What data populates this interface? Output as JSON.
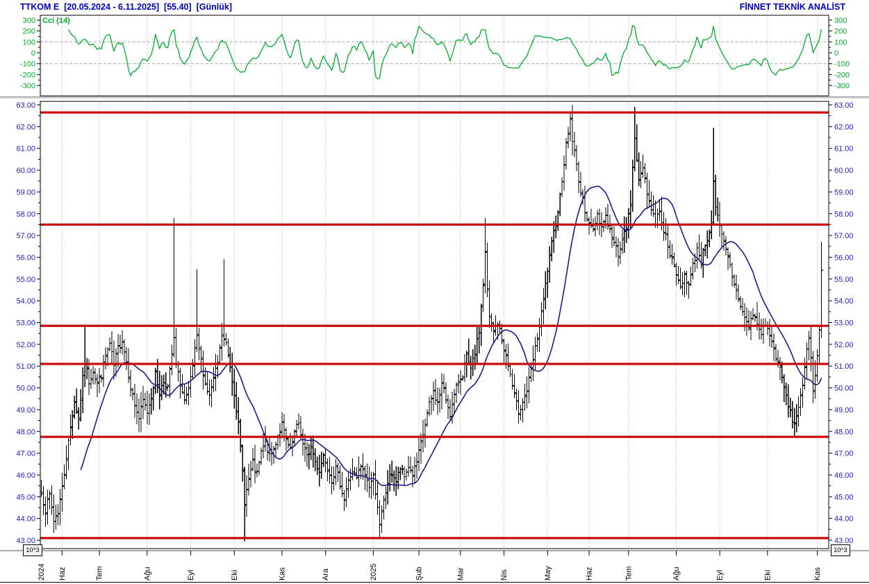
{
  "header": {
    "title": "TTKOM E  [20.05.2024 - 6.11.2025]  [55.40]  [Günlük]",
    "brand": "FİNNET TEKNİK ANALİST",
    "title_color": "#0000b4"
  },
  "colors": {
    "axis_label_blue": "#2222cc",
    "cci_green": "#00ac2c",
    "level_red": "#cc0606",
    "ma_blue": "#1a1a8f",
    "bar_black": "#000000",
    "grid_dotted": "#b8b8b8",
    "guide_dashed": "#a0a0a0"
  },
  "chart_data": {
    "indicator": {
      "type": "line",
      "title": "Cci (14)",
      "period": 14,
      "yticks": [
        300,
        200,
        100,
        0,
        -100,
        -200,
        -300
      ],
      "guides": [
        100,
        -100
      ],
      "note": "CCI(14) oscillator of the price series, green line, dashed guides at +100/-100"
    },
    "price": {
      "type": "ohlc",
      "symbol": "TTKOM E",
      "date_range": "20.05.2024 - 6.11.2025",
      "last_price": 55.4,
      "interval": "Günlük",
      "scale_note": "10^3",
      "bar_count": 380,
      "last_bar_index": 376,
      "yticks": [
        63,
        62,
        61,
        60,
        59,
        58,
        57,
        56,
        55,
        54,
        53,
        52,
        51,
        50,
        49,
        48,
        47,
        46,
        45,
        44,
        43
      ],
      "levels": [
        62.65,
        57.5,
        52.85,
        51.1,
        47.75,
        43.1
      ],
      "ma_period": 20,
      "x_ticks": [
        [
          "2024",
          0
        ],
        [
          "Haz",
          10
        ],
        [
          "Tem",
          28
        ],
        [
          "Ağu",
          51
        ],
        [
          "Eyl",
          72
        ],
        [
          "Eki",
          93
        ],
        [
          "Kas",
          116
        ],
        [
          "Ara",
          137
        ],
        [
          "2025",
          160
        ],
        [
          "Şub",
          182
        ],
        [
          "Mar",
          202
        ],
        [
          "Nis",
          223
        ],
        [
          "May",
          244
        ],
        [
          "Haz",
          264
        ],
        [
          "Tem",
          283
        ],
        [
          "Ağu",
          306
        ],
        [
          "Eyl",
          327
        ],
        [
          "Eki",
          350
        ],
        [
          "Kas",
          374
        ]
      ],
      "close_anchors": [
        [
          0,
          45.2
        ],
        [
          2,
          44.4
        ],
        [
          4,
          45.1
        ],
        [
          6,
          43.9
        ],
        [
          8,
          44.3
        ],
        [
          10,
          45.4
        ],
        [
          12,
          46.8
        ],
        [
          14,
          48.2
        ],
        [
          16,
          49.4
        ],
        [
          18,
          48.6
        ],
        [
          20,
          50.4
        ],
        [
          21,
          51.2
        ],
        [
          23,
          50.3
        ],
        [
          25,
          50.8
        ],
        [
          27,
          50.2
        ],
        [
          29,
          50.6
        ],
        [
          31,
          51.5
        ],
        [
          33,
          52.0
        ],
        [
          35,
          51.0
        ],
        [
          37,
          51.8
        ],
        [
          39,
          52.2
        ],
        [
          41,
          51.2
        ],
        [
          43,
          50.1
        ],
        [
          45,
          49.2
        ],
        [
          47,
          48.6
        ],
        [
          49,
          49.4
        ],
        [
          51,
          48.9
        ],
        [
          53,
          49.6
        ],
        [
          55,
          50.6
        ],
        [
          57,
          49.8
        ],
        [
          59,
          50.3
        ],
        [
          61,
          50.0
        ],
        [
          63,
          51.5
        ],
        [
          64,
          52.2
        ],
        [
          65,
          51.0
        ],
        [
          67,
          50.2
        ],
        [
          69,
          49.4
        ],
        [
          71,
          49.8
        ],
        [
          73,
          51.0
        ],
        [
          75,
          52.3
        ],
        [
          77,
          51.2
        ],
        [
          79,
          50.2
        ],
        [
          81,
          49.6
        ],
        [
          83,
          50.4
        ],
        [
          85,
          51.1
        ],
        [
          87,
          52.4
        ],
        [
          89,
          52.0
        ],
        [
          91,
          51.0
        ],
        [
          93,
          49.8
        ],
        [
          95,
          48.3
        ],
        [
          97,
          46.2
        ],
        [
          98,
          44.8
        ],
        [
          100,
          45.8
        ],
        [
          102,
          46.5
        ],
        [
          104,
          46.0
        ],
        [
          106,
          47.0
        ],
        [
          108,
          47.5
        ],
        [
          110,
          46.8
        ],
        [
          112,
          47.2
        ],
        [
          114,
          47.8
        ],
        [
          116,
          48.3
        ],
        [
          118,
          47.6
        ],
        [
          120,
          47.1
        ],
        [
          122,
          47.9
        ],
        [
          124,
          48.4
        ],
        [
          126,
          47.4
        ],
        [
          128,
          46.8
        ],
        [
          130,
          47.3
        ],
        [
          132,
          46.6
        ],
        [
          134,
          46.2
        ],
        [
          136,
          46.9
        ],
        [
          138,
          46.4
        ],
        [
          140,
          45.8
        ],
        [
          142,
          46.3
        ],
        [
          144,
          45.6
        ],
        [
          146,
          44.9
        ],
        [
          148,
          45.7
        ],
        [
          150,
          46.2
        ],
        [
          152,
          45.8
        ],
        [
          154,
          46.4
        ],
        [
          156,
          46.0
        ],
        [
          158,
          45.5
        ],
        [
          160,
          45.9
        ],
        [
          162,
          44.6
        ],
        [
          163,
          43.6
        ],
        [
          165,
          44.8
        ],
        [
          167,
          45.6
        ],
        [
          169,
          46.1
        ],
        [
          171,
          45.7
        ],
        [
          173,
          46.3
        ],
        [
          175,
          45.9
        ],
        [
          177,
          46.4
        ],
        [
          179,
          46.0
        ],
        [
          181,
          46.6
        ],
        [
          183,
          47.4
        ],
        [
          185,
          48.3
        ],
        [
          187,
          49.2
        ],
        [
          189,
          49.8
        ],
        [
          191,
          49.3
        ],
        [
          193,
          50.2
        ],
        [
          195,
          49.5
        ],
        [
          197,
          48.8
        ],
        [
          199,
          49.6
        ],
        [
          201,
          50.3
        ],
        [
          203,
          50.6
        ],
        [
          205,
          51.4
        ],
        [
          207,
          50.8
        ],
        [
          209,
          51.6
        ],
        [
          211,
          52.6
        ],
        [
          213,
          54.8
        ],
        [
          214,
          56.2
        ],
        [
          215,
          54.4
        ],
        [
          216,
          53.2
        ],
        [
          218,
          52.6
        ],
        [
          220,
          53.0
        ],
        [
          222,
          52.2
        ],
        [
          224,
          51.4
        ],
        [
          226,
          50.6
        ],
        [
          228,
          49.6
        ],
        [
          230,
          48.9
        ],
        [
          232,
          49.4
        ],
        [
          234,
          49.9
        ],
        [
          236,
          50.8
        ],
        [
          238,
          51.8
        ],
        [
          240,
          52.8
        ],
        [
          242,
          54.0
        ],
        [
          244,
          55.4
        ],
        [
          246,
          56.6
        ],
        [
          248,
          57.6
        ],
        [
          250,
          58.8
        ],
        [
          252,
          60.4
        ],
        [
          254,
          61.8
        ],
        [
          255,
          62.3
        ],
        [
          256,
          61.4
        ],
        [
          258,
          60.2
        ],
        [
          260,
          59.0
        ],
        [
          262,
          58.2
        ],
        [
          264,
          57.6
        ],
        [
          266,
          57.2
        ],
        [
          268,
          58.0
        ],
        [
          270,
          57.4
        ],
        [
          272,
          57.9
        ],
        [
          274,
          57.2
        ],
        [
          276,
          56.6
        ],
        [
          278,
          56.2
        ],
        [
          280,
          56.8
        ],
        [
          282,
          57.4
        ],
        [
          284,
          58.4
        ],
        [
          285,
          60.2
        ],
        [
          286,
          61.6
        ],
        [
          287,
          60.6
        ],
        [
          288,
          59.4
        ],
        [
          290,
          60.2
        ],
        [
          292,
          59.0
        ],
        [
          294,
          58.2
        ],
        [
          296,
          57.6
        ],
        [
          298,
          58.2
        ],
        [
          300,
          57.2
        ],
        [
          302,
          56.6
        ],
        [
          304,
          55.8
        ],
        [
          306,
          55.2
        ],
        [
          308,
          54.6
        ],
        [
          310,
          55.2
        ],
        [
          312,
          54.7
        ],
        [
          314,
          55.6
        ],
        [
          316,
          56.4
        ],
        [
          318,
          55.8
        ],
        [
          320,
          56.6
        ],
        [
          322,
          57.2
        ],
        [
          323,
          57.6
        ],
        [
          324,
          59.4
        ],
        [
          325,
          58.2
        ],
        [
          327,
          57.4
        ],
        [
          329,
          56.6
        ],
        [
          331,
          56.0
        ],
        [
          333,
          55.2
        ],
        [
          335,
          54.4
        ],
        [
          337,
          53.8
        ],
        [
          339,
          53.2
        ],
        [
          341,
          52.8
        ],
        [
          343,
          53.4
        ],
        [
          345,
          52.9
        ],
        [
          347,
          52.5
        ],
        [
          349,
          53.0
        ],
        [
          351,
          52.4
        ],
        [
          353,
          51.8
        ],
        [
          355,
          51.2
        ],
        [
          357,
          50.4
        ],
        [
          359,
          49.6
        ],
        [
          361,
          48.8
        ],
        [
          363,
          48.3
        ],
        [
          365,
          49.2
        ],
        [
          367,
          50.2
        ],
        [
          368,
          50.8
        ],
        [
          369,
          51.6
        ],
        [
          370,
          52.3
        ],
        [
          371,
          51.2
        ],
        [
          372,
          50.0
        ],
        [
          373,
          50.6
        ],
        [
          374,
          51.6
        ],
        [
          375,
          52.8
        ],
        [
          376,
          55.4
        ]
      ],
      "extreme_wicks": [
        [
          6,
          43.6
        ],
        [
          21,
          52.9
        ],
        [
          64,
          57.8
        ],
        [
          75,
          55.45
        ],
        [
          88,
          55.9
        ],
        [
          98,
          42.95
        ],
        [
          163,
          43.08
        ],
        [
          214,
          57.8
        ],
        [
          255,
          62.66
        ],
        [
          286,
          62.9
        ],
        [
          324,
          61.95
        ],
        [
          363,
          47.78
        ],
        [
          372,
          49.3
        ],
        [
          376,
          56.7
        ]
      ],
      "noise_seed": 7
    }
  }
}
